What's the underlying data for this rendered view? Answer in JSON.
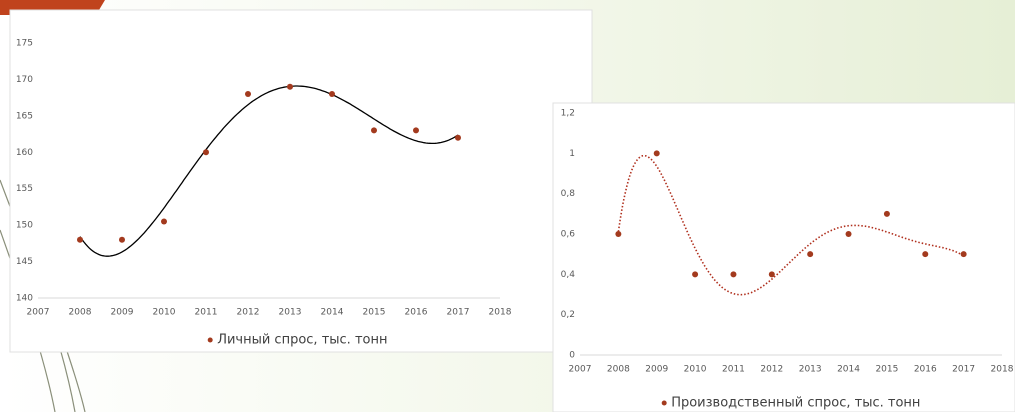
{
  "chart_data": [
    {
      "type": "scatter",
      "x": [
        2008,
        2009,
        2010,
        2011,
        2012,
        2013,
        2014,
        2015,
        2016,
        2017
      ],
      "series": [
        {
          "name": "Личный спрос, тыс. тонн",
          "color": "#a33a1e",
          "values": [
            148,
            148,
            150.5,
            160,
            168,
            169,
            168,
            163,
            163,
            162
          ]
        }
      ],
      "xlim": [
        2007,
        2018
      ],
      "xticks": [
        2007,
        2008,
        2009,
        2010,
        2011,
        2012,
        2013,
        2014,
        2015,
        2016,
        2017,
        2018
      ],
      "ylim": [
        140,
        175
      ],
      "yticks": [
        140,
        145,
        150,
        155,
        160,
        165,
        170,
        175
      ],
      "trendline": "polynomial",
      "trendline_order": 5,
      "trendline_color": "#000000",
      "trendline_style": "solid",
      "legend": "bottom"
    },
    {
      "type": "scatter",
      "x": [
        2008,
        2009,
        2010,
        2011,
        2012,
        2013,
        2014,
        2015,
        2016,
        2017
      ],
      "series": [
        {
          "name": "Производственный спрос, тыс. тонн",
          "color": "#a33a1e",
          "values": [
            0.6,
            1,
            0.4,
            0.4,
            0.4,
            0.5,
            0.6,
            0.7,
            0.5,
            0.5
          ]
        }
      ],
      "xlim": [
        2007,
        2018
      ],
      "xticks": [
        2007,
        2008,
        2009,
        2010,
        2011,
        2012,
        2013,
        2014,
        2015,
        2016,
        2017,
        2018
      ],
      "ylim": [
        0,
        1.2
      ],
      "yticks": [
        0,
        {
          "value": 0.2,
          "label": "0,2"
        },
        {
          "value": 0.4,
          "label": "0,4"
        },
        {
          "value": 0.6,
          "label": "0,6"
        },
        {
          "value": 0.8,
          "label": "0,8"
        },
        1,
        {
          "value": 1.2,
          "label": "1,2"
        }
      ],
      "trendline": "polynomial",
      "trendline_order": 6,
      "trendline_color": "#b0301e",
      "trendline_style": "dotted",
      "legend": "bottom"
    }
  ]
}
